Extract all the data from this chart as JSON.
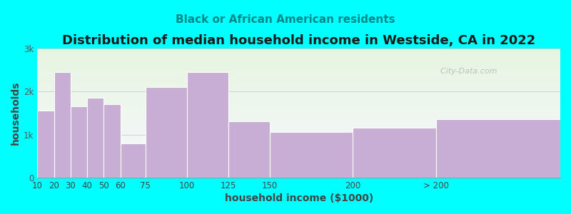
{
  "title": "Distribution of median household income in Westside, CA in 2022",
  "subtitle": "Black or African American residents",
  "xlabel": "household income ($1000)",
  "ylabel": "households",
  "title_color": "#1a1a1a",
  "subtitle_color": "#008888",
  "xlabel_color": "#444444",
  "ylabel_color": "#444444",
  "bar_color": "#c8aed4",
  "bar_edge_color": "white",
  "background_color": "#00ffff",
  "plot_bg_top": "#e6f5e0",
  "plot_bg_bottom": "#f8f8ff",
  "watermark": "  City-Data.com",
  "bin_edges": [
    10,
    20,
    30,
    40,
    50,
    60,
    75,
    100,
    125,
    150,
    200,
    250,
    325
  ],
  "bar_heights": [
    1550,
    2450,
    1650,
    1850,
    1700,
    800,
    2100,
    2450,
    1300,
    1050,
    1150,
    1350
  ],
  "xtick_positions": [
    10,
    20,
    30,
    40,
    50,
    60,
    75,
    100,
    125,
    150,
    200,
    250
  ],
  "xtick_labels": [
    "10",
    "20",
    "30",
    "40",
    "50",
    "60",
    "75",
    "100",
    "125",
    "150",
    "200",
    "> 200"
  ],
  "yticks": [
    0,
    1000,
    2000,
    3000
  ],
  "ytick_labels": [
    "0",
    "1k",
    "2k",
    "3k"
  ],
  "ylim": [
    0,
    3000
  ],
  "xlim": [
    10,
    325
  ],
  "title_fontsize": 13,
  "subtitle_fontsize": 11,
  "axis_label_fontsize": 10,
  "tick_fontsize": 8.5
}
